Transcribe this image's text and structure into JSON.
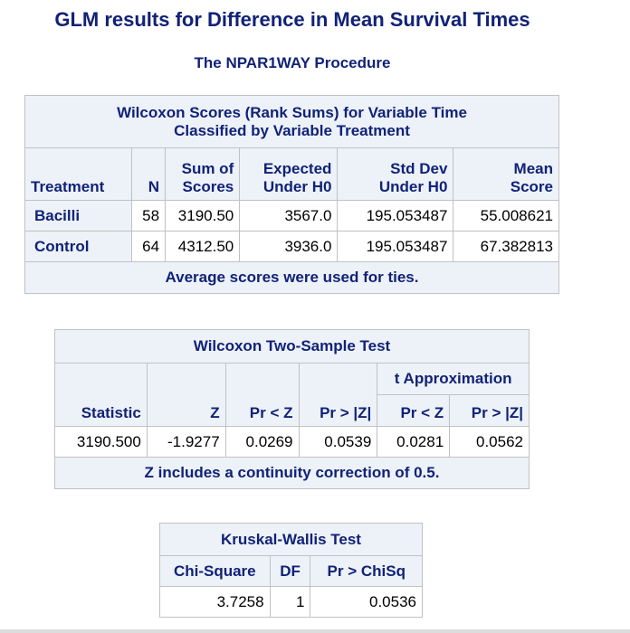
{
  "title": "GLM results for Difference in Mean Survival Times",
  "procedure": "The NPAR1WAY Procedure",
  "wilcoxon_scores": {
    "caption_line1": "Wilcoxon Scores (Rank Sums) for Variable Time",
    "caption_line2": "Classified by Variable Treatment",
    "headers": {
      "treatment": "Treatment",
      "n": "N",
      "sum_line1": "Sum of",
      "sum_line2": "Scores",
      "exp_line1": "Expected",
      "exp_line2": "Under H0",
      "std_line1": "Std Dev",
      "std_line2": "Under H0",
      "mean_line1": "Mean",
      "mean_line2": "Score"
    },
    "rows": [
      {
        "treatment": "Bacilli",
        "n": "58",
        "sum": "3190.50",
        "expected": "3567.0",
        "std": "195.053487",
        "mean": "55.008621"
      },
      {
        "treatment": "Control",
        "n": "64",
        "sum": "4312.50",
        "expected": "3936.0",
        "std": "195.053487",
        "mean": "67.382813"
      }
    ],
    "footer": "Average scores were used for ties."
  },
  "two_sample": {
    "caption": "Wilcoxon Two-Sample Test",
    "t_approx": "t Approximation",
    "headers": {
      "statistic": "Statistic",
      "z": "Z",
      "pr_lt_z": "Pr < Z",
      "pr_gt_abs_z": "Pr > |Z|",
      "t_pr_lt_z": "Pr < Z",
      "t_pr_gt_abs_z": "Pr > |Z|"
    },
    "row": {
      "statistic": "3190.500",
      "z": "-1.9277",
      "pr_lt_z": "0.0269",
      "pr_gt_abs_z": "0.0539",
      "t_pr_lt_z": "0.0281",
      "t_pr_gt_abs_z": "0.0562"
    },
    "footer": "Z includes a continuity correction of 0.5."
  },
  "kruskal": {
    "caption": "Kruskal-Wallis Test",
    "headers": {
      "chisq": "Chi-Square",
      "df": "DF",
      "p": "Pr > ChiSq"
    },
    "row": {
      "chisq": "3.7258",
      "df": "1",
      "p": "0.0536"
    }
  }
}
